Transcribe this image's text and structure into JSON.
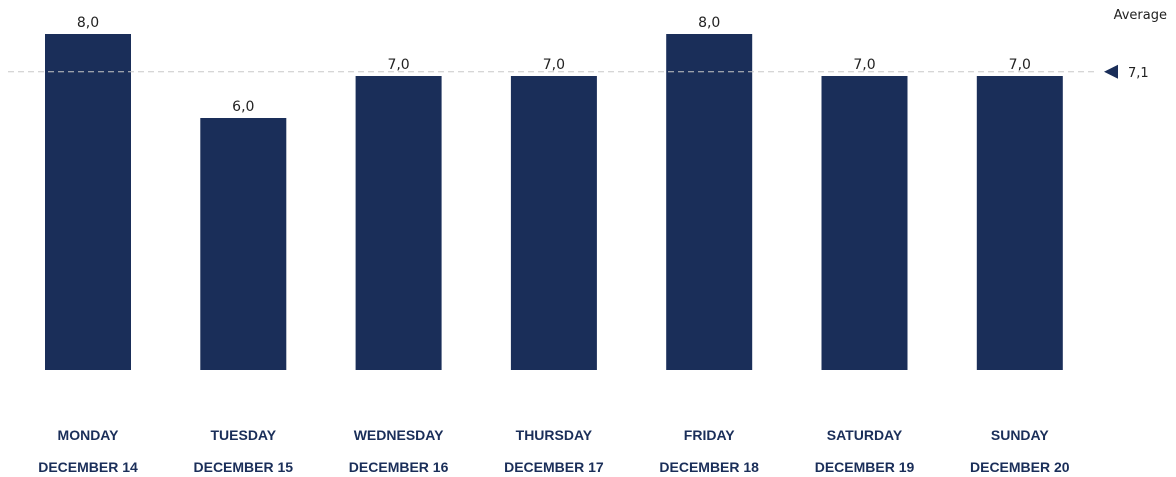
{
  "chart_data": {
    "type": "bar",
    "categories": [
      [
        "MONDAY",
        "DECEMBER 14"
      ],
      [
        "TUESDAY",
        "DECEMBER 15"
      ],
      [
        "WEDNESDAY",
        "DECEMBER 16"
      ],
      [
        "THURSDAY",
        "DECEMBER 17"
      ],
      [
        "FRIDAY",
        "DECEMBER 18"
      ],
      [
        "SATURDAY",
        "DECEMBER 19"
      ],
      [
        "SUNDAY",
        "DECEMBER 20"
      ]
    ],
    "values": [
      8.0,
      6.0,
      7.0,
      7.0,
      8.0,
      7.0,
      7.0
    ],
    "value_labels": [
      "8,0",
      "6,0",
      "7,0",
      "7,0",
      "8,0",
      "7,0",
      "7,0"
    ],
    "average": {
      "label": "Average",
      "value": 7.1,
      "value_label": "7,1"
    },
    "title": "",
    "xlabel": "",
    "ylabel": "",
    "ylim": [
      0,
      8
    ],
    "grid": false,
    "legend": "none",
    "colors": {
      "bar": "#1a2e59",
      "average_line": "#c8c8c8",
      "average_marker": "#1a2e59",
      "category_text": "#1a2e59"
    }
  }
}
